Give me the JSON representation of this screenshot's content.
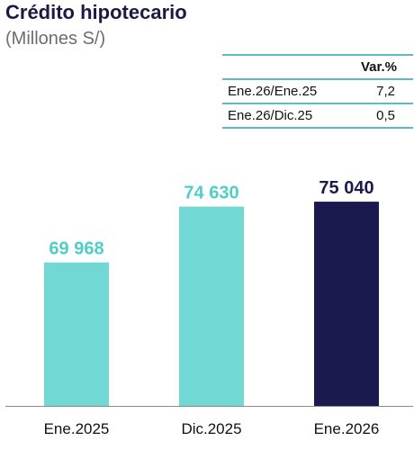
{
  "title": "Crédito hipotecario",
  "subtitle": "(Millones S/)",
  "variation_table": {
    "header": "Var.%",
    "rows": [
      {
        "label": "Ene.26/Ene.25",
        "value": "7,2"
      },
      {
        "label": "Ene.26/Dic.25",
        "value": "0,5"
      }
    ]
  },
  "chart_data": {
    "type": "bar",
    "title": "Crédito hipotecario",
    "subtitle": "(Millones S/)",
    "categories": [
      "Ene.2025",
      "Dic.2025",
      "Ene.2026"
    ],
    "values": [
      69968,
      74630,
      75040
    ],
    "value_labels": [
      "69 968",
      "74 630",
      "75 040"
    ],
    "colors": [
      "#72d8d3",
      "#72d8d3",
      "#1a1a4e"
    ],
    "label_colors": [
      "#4ecdc9",
      "#4ecdc9",
      "#1a1a4e"
    ],
    "ylim": [
      58000,
      77000
    ],
    "grid": false,
    "legend": "none"
  }
}
